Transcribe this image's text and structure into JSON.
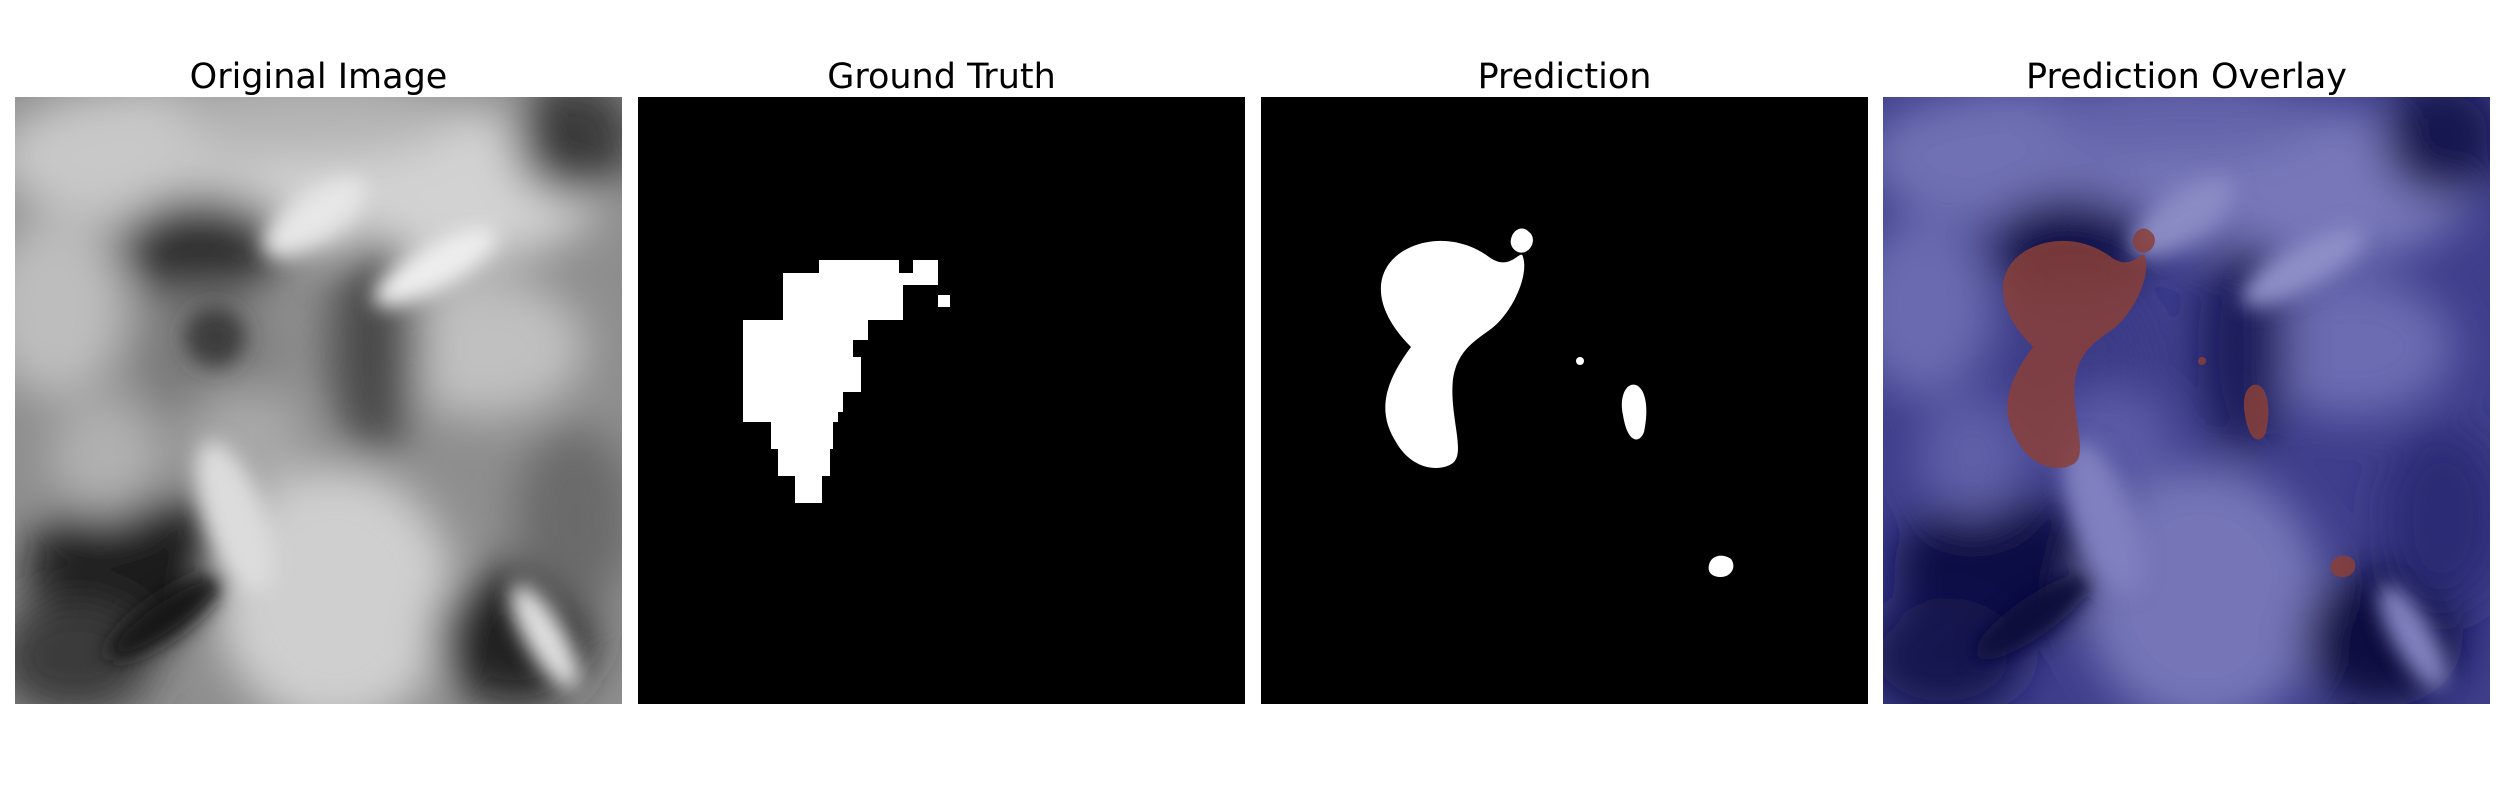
{
  "panels": [
    {
      "title": "Original Image"
    },
    {
      "title": "Ground Truth"
    },
    {
      "title": "Prediction"
    },
    {
      "title": "Prediction Overlay"
    }
  ],
  "colors": {
    "background": "#ffffff",
    "mask_background": "#000000",
    "mask_foreground": "#ffffff",
    "overlay_base": "#1a1a6e",
    "overlay_highlight": "#8a4038"
  }
}
